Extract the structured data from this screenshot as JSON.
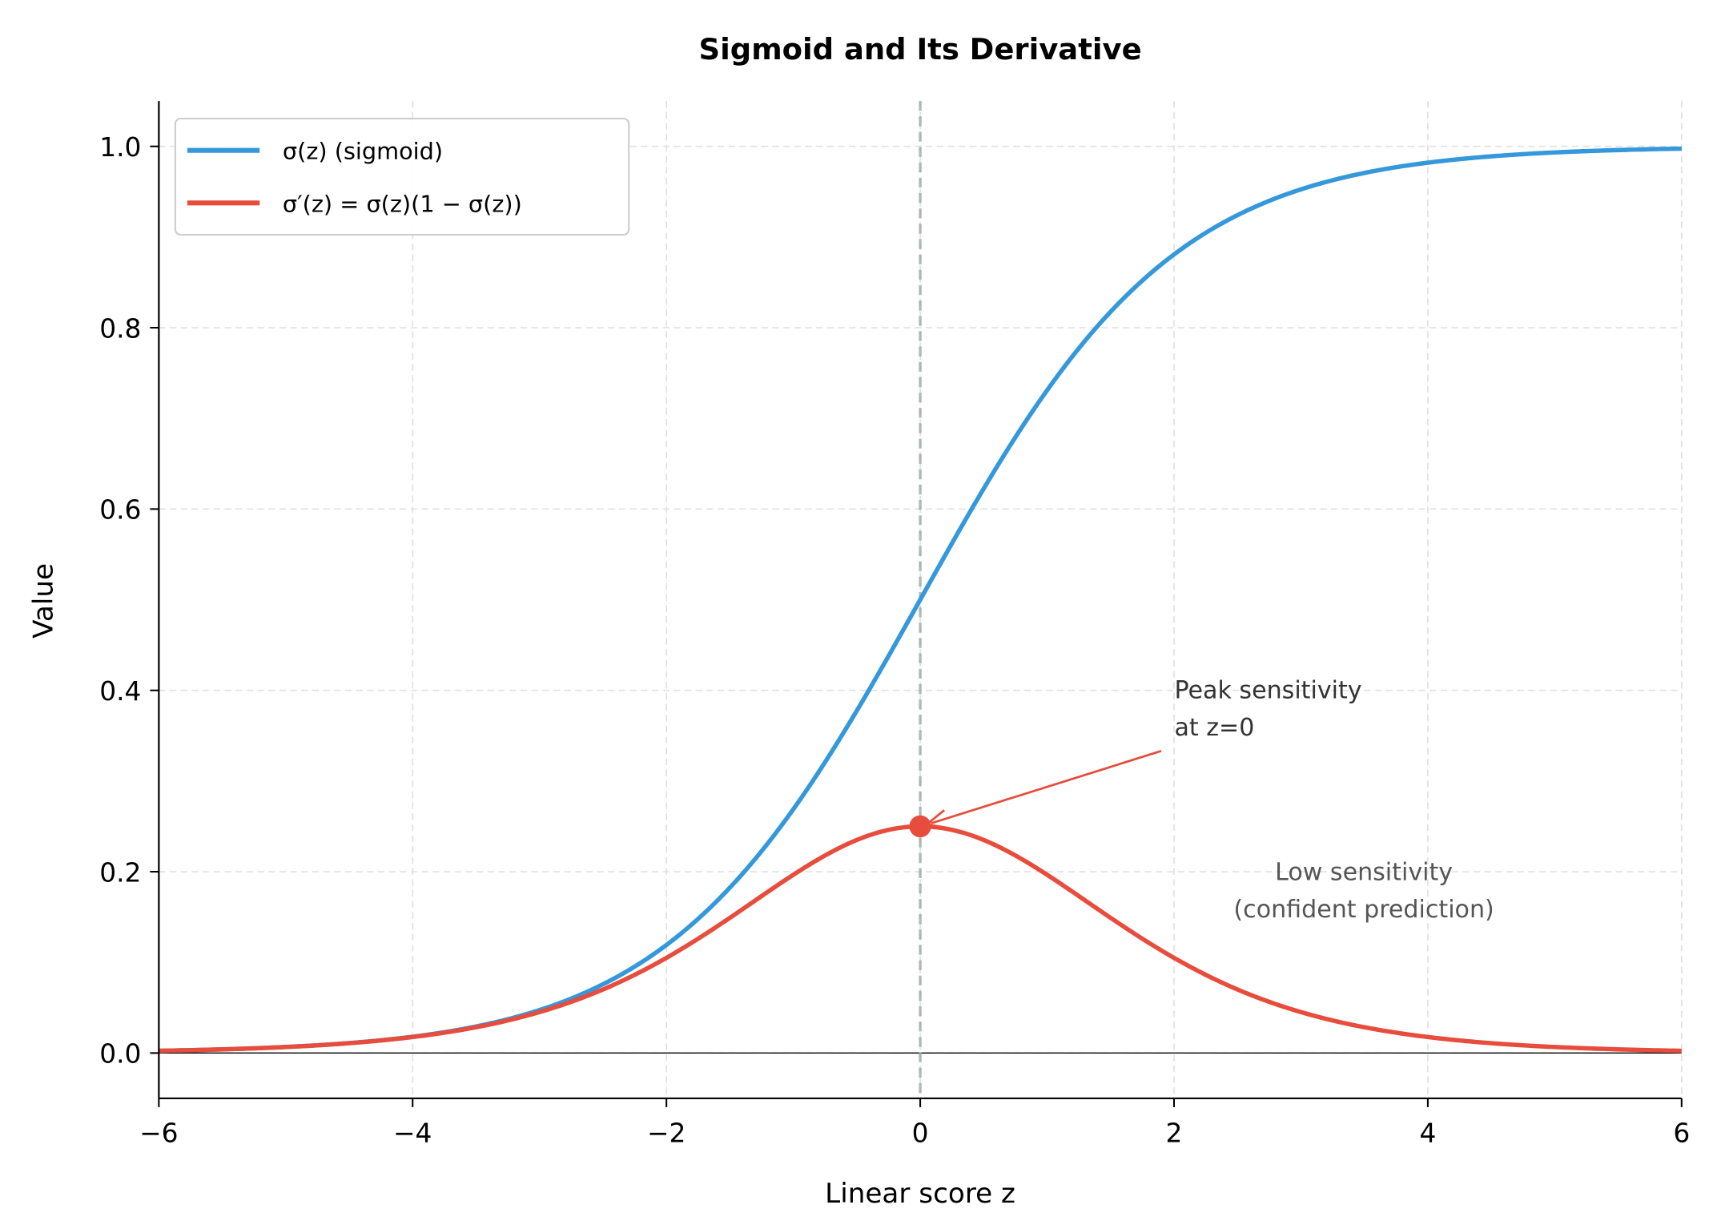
{
  "chart_data": {
    "type": "line",
    "title": "Sigmoid and Its Derivative",
    "xlabel": "Linear score z",
    "ylabel": "Value",
    "xlim": [
      -6,
      6
    ],
    "ylim": [
      -0.05,
      1.05
    ],
    "xticks": [
      "−6",
      "−4",
      "−2",
      "0",
      "2",
      "4",
      "6"
    ],
    "xtick_values": [
      -6,
      -4,
      -2,
      0,
      2,
      4,
      6
    ],
    "yticks": [
      "0.0",
      "0.2",
      "0.4",
      "0.6",
      "0.8",
      "1.0"
    ],
    "ytick_values": [
      0,
      0.2,
      0.4,
      0.6,
      0.8,
      1.0
    ],
    "grid": true,
    "legend_position": "top-left",
    "series": [
      {
        "name": "σ(z) (sigmoid)",
        "function": "sigmoid",
        "color": "#3498db",
        "x": [
          -6,
          -5,
          -4,
          -3,
          -2,
          -1,
          0,
          1,
          2,
          3,
          4,
          5,
          6
        ],
        "values": [
          0.0025,
          0.0067,
          0.018,
          0.047,
          0.119,
          0.269,
          0.5,
          0.731,
          0.881,
          0.953,
          0.982,
          0.993,
          0.9975
        ]
      },
      {
        "name": "σ′(z) = σ(z)(1 − σ(z))",
        "function": "sigmoid_derivative",
        "color": "#e74c3c",
        "x": [
          -6,
          -5,
          -4,
          -3,
          -2,
          -1,
          0,
          1,
          2,
          3,
          4,
          5,
          6
        ],
        "values": [
          0.0025,
          0.0066,
          0.0177,
          0.0452,
          0.105,
          0.197,
          0.25,
          0.197,
          0.105,
          0.0452,
          0.0177,
          0.0066,
          0.0025
        ]
      }
    ],
    "reference_lines": {
      "vertical_x": 0,
      "vertical_color": "#95a5a6",
      "horizontal_y": 0
    },
    "highlight_point": {
      "x": 0,
      "y": 0.25,
      "color": "#e74c3c"
    },
    "annotations": [
      {
        "text_lines": [
          "Peak sensitivity",
          "at z=0"
        ],
        "points_to": {
          "x": 0,
          "y": 0.25
        },
        "color": "#e74c3c"
      },
      {
        "text_lines": [
          "Low sensitivity",
          "(confident prediction)"
        ]
      }
    ]
  }
}
